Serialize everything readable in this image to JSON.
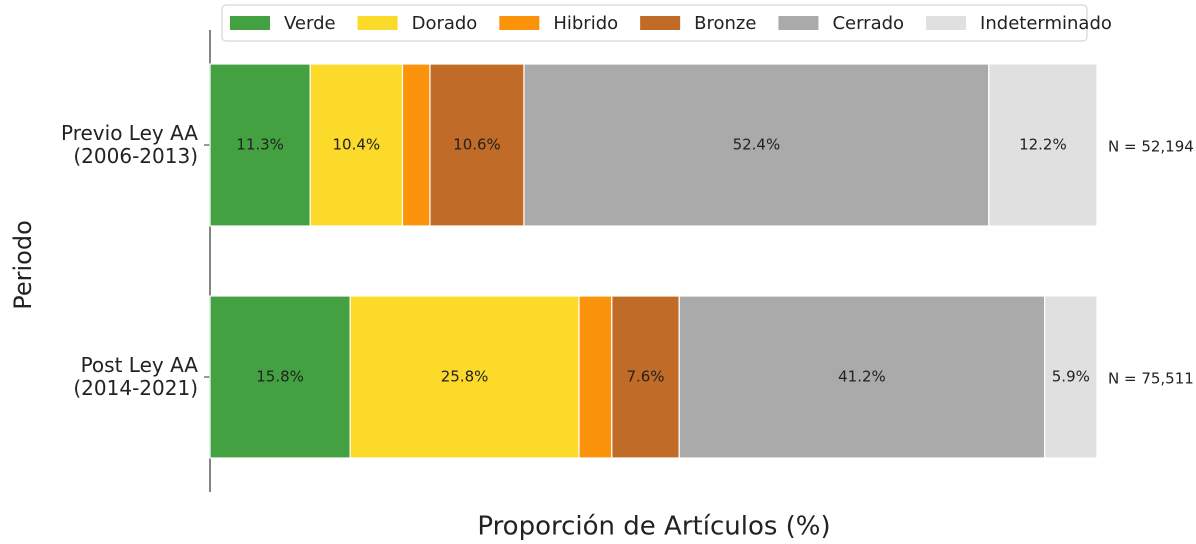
{
  "chart_data": {
    "type": "stacked_barh",
    "categories": [
      "Previo Ley AA\n(2006-2013)",
      "Post Ley AA\n(2014-2021)"
    ],
    "series": [
      {
        "name": "Verde",
        "color": "#43a141",
        "values": [
          11.3,
          15.8
        ],
        "value_labels": [
          "11.3%",
          "15.8%"
        ]
      },
      {
        "name": "Dorado",
        "color": "#fcda2a",
        "values": [
          10.4,
          25.8
        ],
        "value_labels": [
          "10.4%",
          "25.8%"
        ]
      },
      {
        "name": "Hibrido",
        "color": "#fb930b",
        "values": [
          3.1,
          3.7
        ],
        "value_labels": [
          null,
          null
        ]
      },
      {
        "name": "Bronze",
        "color": "#c06b27",
        "values": [
          10.6,
          7.6
        ],
        "value_labels": [
          "10.6%",
          "7.6%"
        ]
      },
      {
        "name": "Cerrado",
        "color": "#aaaaaa",
        "values": [
          52.4,
          41.2
        ],
        "value_labels": [
          "52.4%",
          "41.2%"
        ]
      },
      {
        "name": "Indeterminado",
        "color": "#e0e0e0",
        "values": [
          12.2,
          5.9
        ],
        "value_labels": [
          "12.2%",
          "5.9%"
        ]
      }
    ],
    "annotations": [
      "N = 52,194",
      "N = 75,511"
    ],
    "xlabel": "Proporción de Artículos (%)",
    "ylabel": "Periodo",
    "xlim": [
      0,
      100
    ],
    "legend": "top"
  }
}
